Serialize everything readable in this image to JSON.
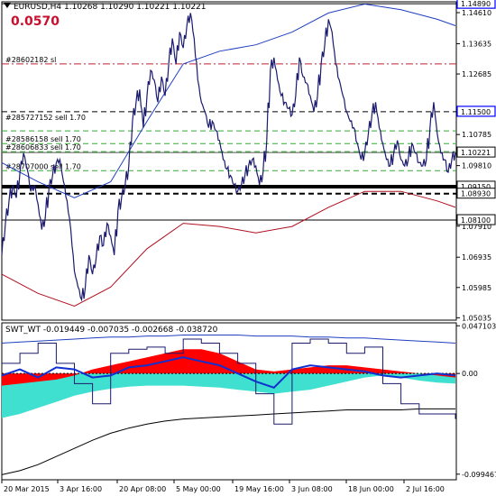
{
  "header": {
    "symbol_tf": "EURUSD,H4",
    "ohlc": [
      "1.10268",
      "1.10290",
      "1.10221",
      "1.10221"
    ]
  },
  "spread_label": "0.0570",
  "indicator": {
    "name": "SWT_WT",
    "values": [
      "-0.019449",
      "-0.007035",
      "-0.002668",
      "-0.038720"
    ]
  },
  "colors": {
    "candles": "#1a1a6e",
    "ma_blue": "#1f3fbf",
    "ma_red": "#b01020",
    "histogram_red": "#ff0000",
    "histogram_cyan": "#40e0d0",
    "grid_green": "#33aa33",
    "price_box": "#0000ff"
  },
  "chart_data": [
    {
      "type": "line",
      "title": "",
      "y_ticks": [
        "1.14610",
        "1.13635",
        "1.12685",
        "1.10785",
        "1.09810",
        "1.07910",
        "1.06935",
        "1.05985",
        "1.05035"
      ],
      "price_tags": [
        {
          "value": "1.14890",
          "highlight": true
        },
        {
          "value": "1.11500",
          "highlight": true
        },
        {
          "value": "1.10221",
          "highlight": false
        },
        {
          "value": "1.09150",
          "highlight": false
        },
        {
          "value": "1.08930",
          "highlight": false
        },
        {
          "value": "1.08100",
          "highlight": false
        }
      ],
      "order_labels": [
        "#28602182 sl",
        "#285727152 sell 1.70",
        "#28586158 sell 1.70",
        "#28606833 sell 1.70",
        "#28707000 sell 1.70"
      ],
      "x_labels": [
        "20 Mar 2015",
        "3 Apr 16:00",
        "20 Apr 08:00",
        "5 May 00:00",
        "19 May 16:00",
        "3 Jun 08:00",
        "18 Jun 00:00",
        "2 Jul 16:00"
      ],
      "ylim": [
        1.0496,
        1.1495
      ],
      "series": [
        {
          "kind": "price",
          "x": [
            0,
            4,
            8,
            12,
            16,
            20,
            24,
            28,
            32,
            36,
            40,
            44,
            48,
            52,
            56,
            60,
            64,
            68,
            72,
            76,
            80,
            84,
            88,
            92,
            96,
            100,
            104,
            108,
            112,
            116,
            120,
            124,
            128,
            132,
            136,
            140,
            144,
            148,
            152,
            156,
            160,
            164,
            168,
            172,
            176,
            180,
            184,
            188,
            192,
            196,
            200,
            204,
            208,
            212,
            216,
            220,
            224,
            228,
            232,
            236,
            240,
            244,
            248,
            252,
            256,
            260,
            264,
            268,
            272,
            276,
            280,
            284,
            288,
            292,
            296,
            300,
            304,
            308,
            312,
            316,
            320,
            324,
            328,
            332,
            336,
            340,
            344,
            348,
            352,
            356,
            360,
            364,
            368,
            372,
            376,
            380,
            384,
            388,
            392,
            396,
            400,
            404,
            408,
            412,
            416,
            420,
            424,
            428,
            432,
            436,
            440,
            444,
            448,
            452,
            456,
            460,
            464,
            468,
            472,
            476,
            480,
            484,
            488,
            492,
            496,
            500
          ],
          "y": [
            1.07,
            1.08,
            1.087,
            1.092,
            1.088,
            1.096,
            1.102,
            1.097,
            1.09,
            1.092,
            1.086,
            1.078,
            1.082,
            1.091,
            1.095,
            1.099,
            1.1,
            1.093,
            1.087,
            1.078,
            1.065,
            1.06,
            1.056,
            1.06,
            1.07,
            1.064,
            1.069,
            1.076,
            1.073,
            1.08,
            1.076,
            1.07,
            1.084,
            1.088,
            1.092,
            1.098,
            1.112,
            1.118,
            1.122,
            1.11,
            1.12,
            1.128,
            1.125,
            1.118,
            1.126,
            1.12,
            1.13,
            1.138,
            1.13,
            1.14,
            1.135,
            1.142,
            1.146,
            1.138,
            1.125,
            1.118,
            1.115,
            1.11,
            1.112,
            1.109,
            1.106,
            1.1,
            1.097,
            1.095,
            1.092,
            1.09,
            1.092,
            1.095,
            1.098,
            1.1,
            1.098,
            1.092,
            1.096,
            1.106,
            1.128,
            1.132,
            1.125,
            1.12,
            1.118,
            1.116,
            1.114,
            1.12,
            1.132,
            1.126,
            1.124,
            1.12,
            1.115,
            1.12,
            1.13,
            1.136,
            1.144,
            1.14,
            1.13,
            1.125,
            1.12,
            1.115,
            1.112,
            1.11,
            1.105,
            1.1,
            1.102,
            1.108,
            1.114,
            1.118,
            1.11,
            1.105,
            1.1,
            1.098,
            1.102,
            1.106,
            1.1,
            1.098,
            1.1,
            1.105,
            1.102,
            1.099,
            1.098,
            1.1,
            1.11,
            1.118,
            1.108,
            1.102,
            1.1,
            1.096,
            1.1,
            1.1022
          ]
        },
        {
          "kind": "ma_blue",
          "x": [
            0,
            40,
            80,
            120,
            160,
            200,
            240,
            280,
            320,
            360,
            400,
            440,
            480,
            500
          ],
          "y": [
            1.099,
            1.093,
            1.088,
            1.093,
            1.112,
            1.13,
            1.134,
            1.136,
            1.14,
            1.146,
            1.1488,
            1.147,
            1.144,
            1.142
          ]
        },
        {
          "kind": "ma_red",
          "x": [
            0,
            40,
            80,
            120,
            160,
            200,
            240,
            280,
            320,
            360,
            400,
            440,
            480,
            500
          ],
          "y": [
            1.064,
            1.058,
            1.054,
            1.06,
            1.072,
            1.08,
            1.079,
            1.077,
            1.079,
            1.085,
            1.09,
            1.09,
            1.087,
            1.085
          ]
        }
      ]
    },
    {
      "type": "area",
      "title": "",
      "y_ticks": [
        "0.047103",
        "0.00",
        "-0.099467"
      ],
      "ylim": [
        -0.105,
        0.05
      ],
      "x": [
        0,
        20,
        40,
        60,
        80,
        100,
        120,
        140,
        160,
        180,
        200,
        220,
        240,
        260,
        280,
        300,
        320,
        340,
        360,
        380,
        400,
        420,
        440,
        460,
        480,
        500
      ],
      "series": [
        {
          "kind": "histogram_red",
          "values": [
            -0.012,
            -0.01,
            -0.008,
            -0.006,
            -0.002,
            0.004,
            0.008,
            0.012,
            0.016,
            0.02,
            0.024,
            0.024,
            0.02,
            0.012,
            0.004,
            0.002,
            0.004,
            0.006,
            0.008,
            0.008,
            0.006,
            0.004,
            0.002,
            0.0,
            -0.002,
            -0.004
          ]
        },
        {
          "kind": "histogram_cyan",
          "values": [
            -0.044,
            -0.04,
            -0.034,
            -0.028,
            -0.022,
            -0.018,
            -0.015,
            -0.013,
            -0.012,
            -0.012,
            -0.012,
            -0.013,
            -0.014,
            -0.016,
            -0.018,
            -0.02,
            -0.018,
            -0.016,
            -0.012,
            -0.008,
            -0.004,
            -0.002,
            -0.004,
            -0.007,
            -0.009,
            -0.01
          ]
        },
        {
          "kind": "wave_blue",
          "values": [
            -0.002,
            0.004,
            -0.004,
            0.006,
            0.004,
            -0.004,
            -0.002,
            0.006,
            0.008,
            0.012,
            0.016,
            0.012,
            0.008,
            0.0,
            -0.008,
            -0.014,
            0.004,
            0.008,
            0.006,
            0.004,
            0.002,
            -0.002,
            -0.004,
            -0.002,
            0.0,
            -0.002
          ]
        },
        {
          "kind": "wave_thin",
          "values": [
            0.01,
            0.02,
            0.03,
            0.01,
            -0.01,
            -0.03,
            0.02,
            0.024,
            0.026,
            0.02,
            0.034,
            0.03,
            0.02,
            0.01,
            -0.02,
            -0.05,
            0.03,
            0.034,
            0.03,
            0.02,
            0.026,
            -0.01,
            -0.03,
            -0.04,
            -0.04,
            -0.045
          ]
        },
        {
          "kind": "band_upper",
          "values": [
            0.03,
            0.031,
            0.032,
            0.033,
            0.034,
            0.035,
            0.036,
            0.036,
            0.037,
            0.037,
            0.038,
            0.038,
            0.038,
            0.038,
            0.037,
            0.037,
            0.037,
            0.036,
            0.036,
            0.035,
            0.035,
            0.034,
            0.033,
            0.032,
            0.031,
            0.03
          ]
        },
        {
          "kind": "band_lower",
          "values": [
            -0.1,
            -0.096,
            -0.09,
            -0.082,
            -0.074,
            -0.066,
            -0.059,
            -0.054,
            -0.05,
            -0.047,
            -0.045,
            -0.044,
            -0.043,
            -0.042,
            -0.041,
            -0.04,
            -0.039,
            -0.038,
            -0.037,
            -0.036,
            -0.036,
            -0.036,
            -0.036,
            -0.035,
            -0.035,
            -0.035
          ]
        }
      ]
    }
  ]
}
